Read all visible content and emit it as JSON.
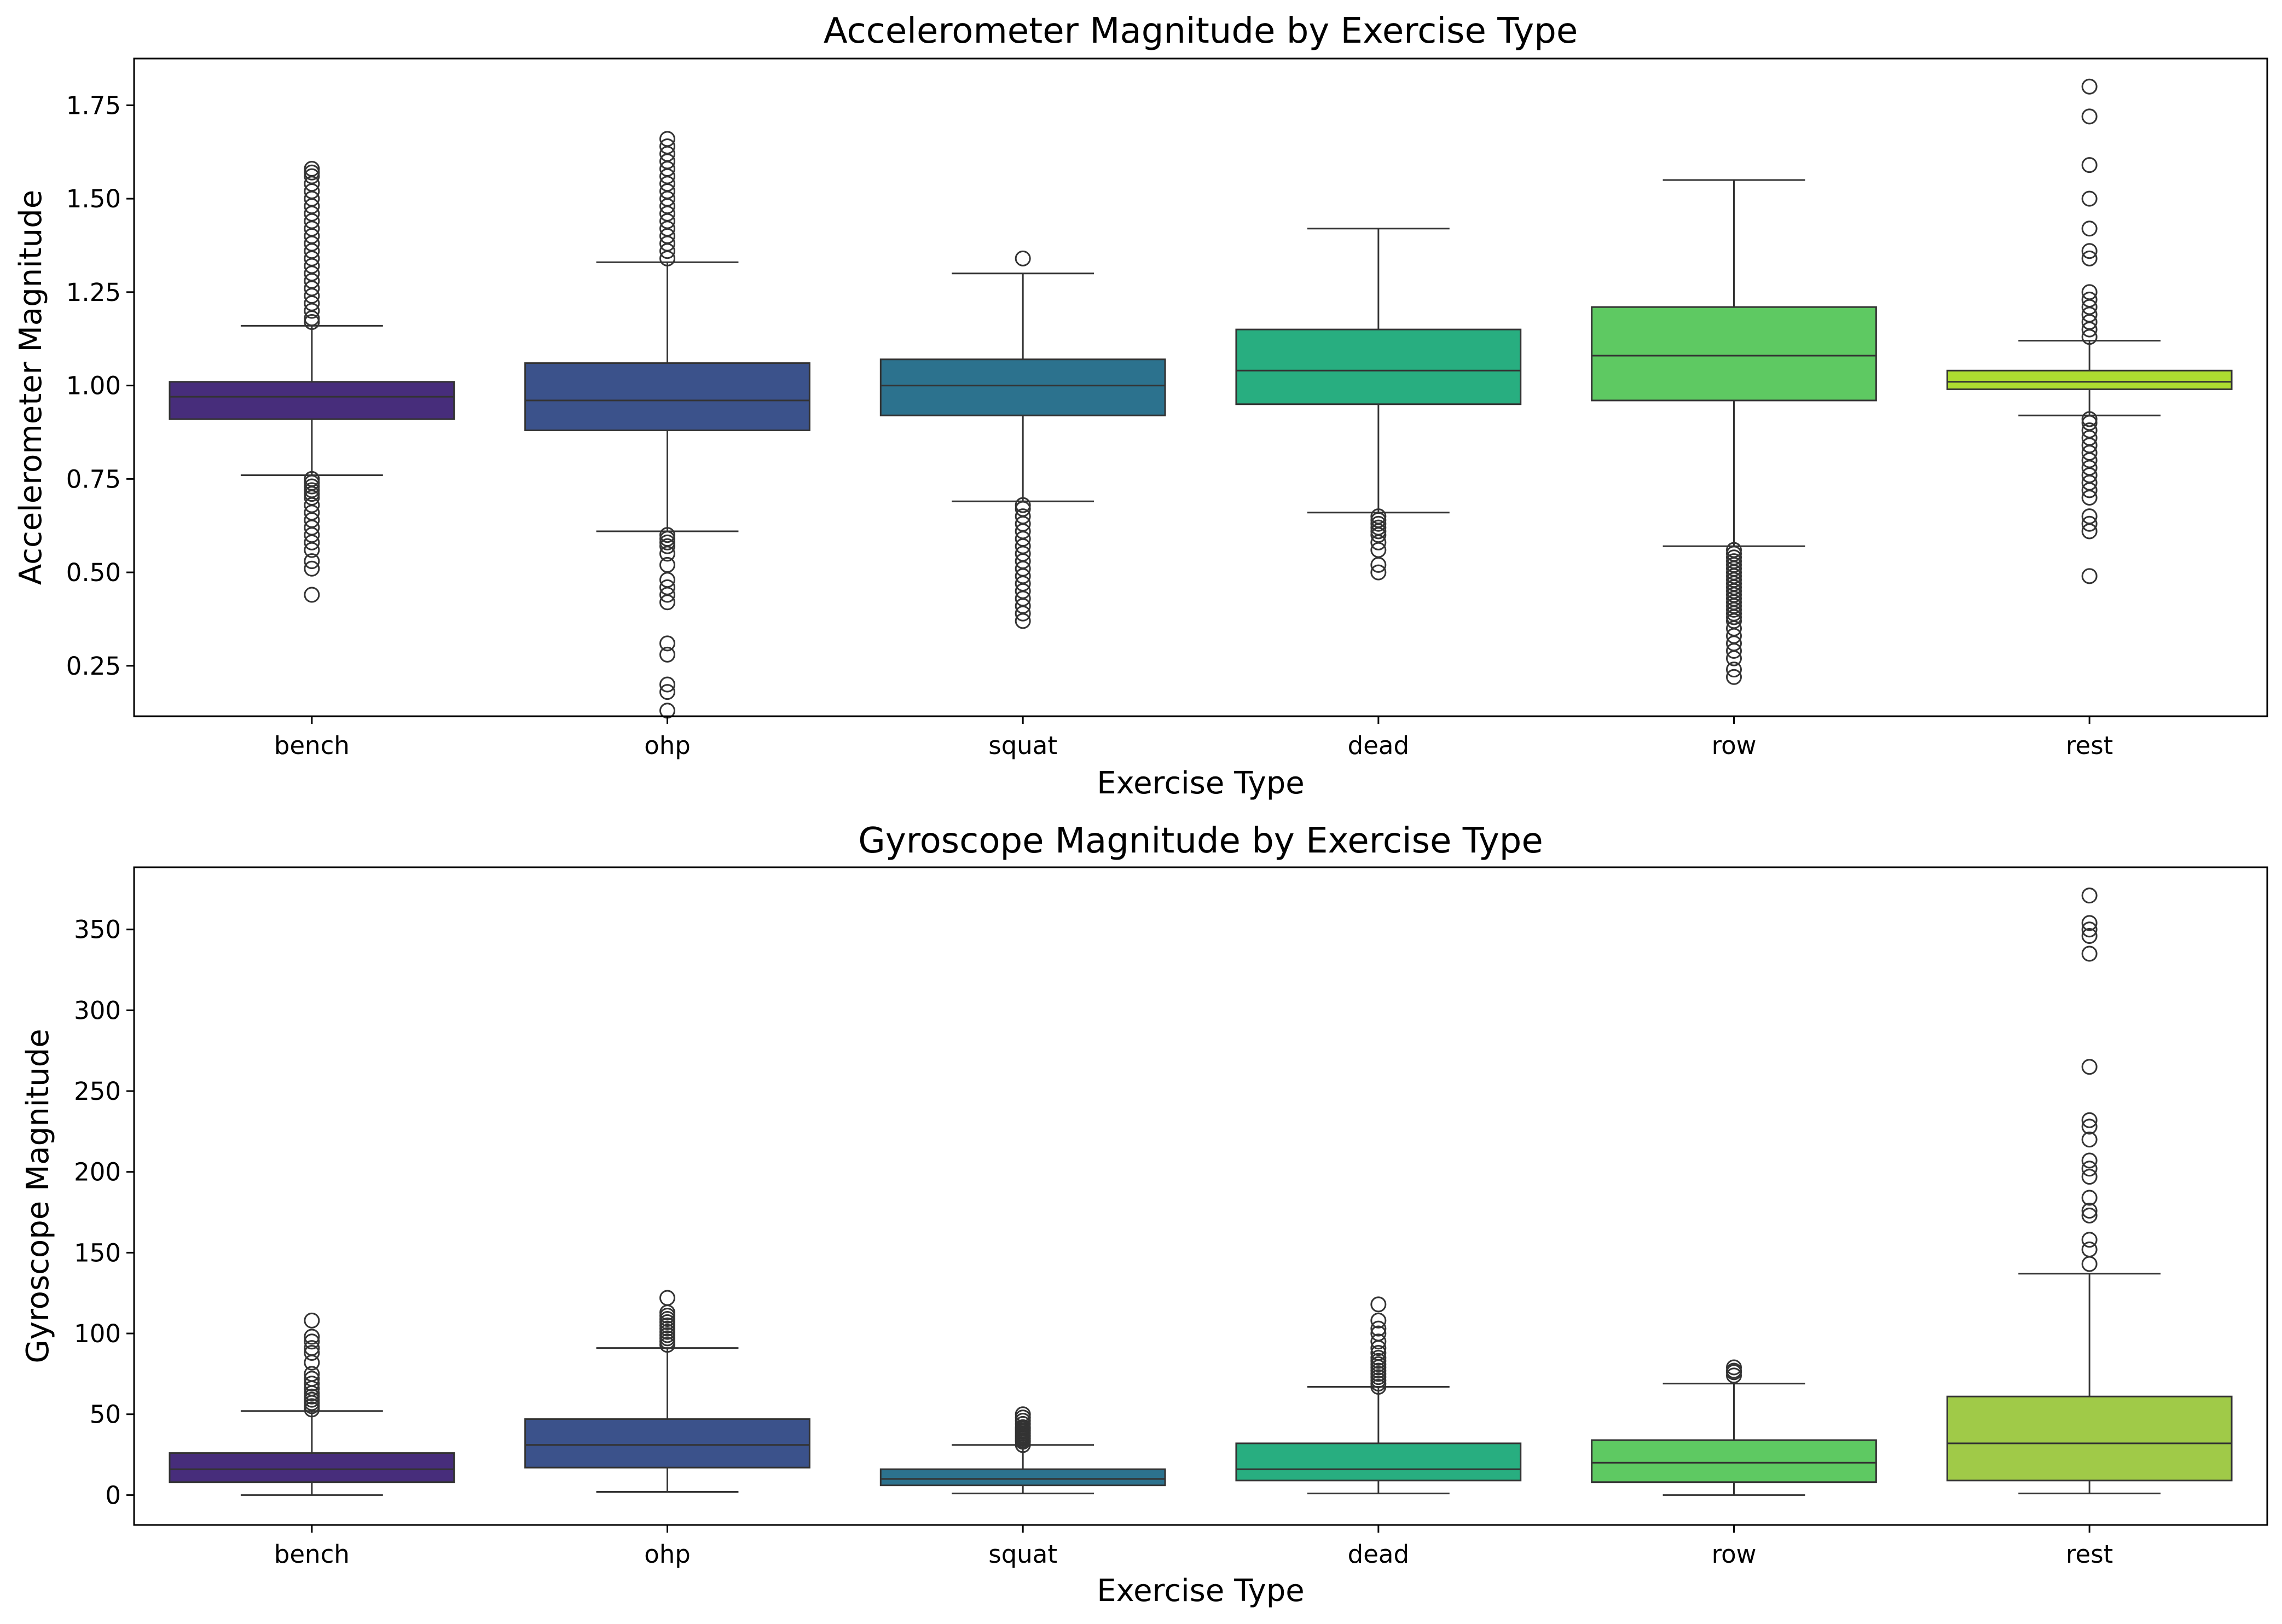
{
  "chart_data": [
    {
      "type": "box",
      "title": "Accelerometer Magnitude by Exercise Type",
      "xlabel": "Exercise Type",
      "ylabel": "Accelerometer Magnitude",
      "ylim": [
        0.115,
        1.875
      ],
      "yticks": [
        {
          "value": 0.25,
          "label": "0.25"
        },
        {
          "value": 0.5,
          "label": "0.50"
        },
        {
          "value": 0.75,
          "label": "0.75"
        },
        {
          "value": 1.0,
          "label": "1.00"
        },
        {
          "value": 1.25,
          "label": "1.25"
        },
        {
          "value": 1.5,
          "label": "1.50"
        },
        {
          "value": 1.75,
          "label": "1.75"
        }
      ],
      "categories": [
        "bench",
        "ohp",
        "squat",
        "dead",
        "row",
        "rest"
      ],
      "colors": [
        "#472d7b",
        "#3b528b",
        "#2c728e",
        "#28ae80",
        "#5ec962",
        "#addc30"
      ],
      "boxes": [
        {
          "q1": 0.91,
          "median": 0.97,
          "q3": 1.01,
          "whisker_low": 0.76,
          "whisker_high": 1.16,
          "outliers": [
            0.44,
            0.51,
            0.53,
            0.56,
            0.58,
            0.6,
            0.62,
            0.64,
            0.66,
            0.68,
            0.7,
            0.71,
            0.72,
            0.73,
            0.74,
            0.75,
            1.17,
            1.18,
            1.2,
            1.22,
            1.24,
            1.26,
            1.28,
            1.3,
            1.32,
            1.34,
            1.36,
            1.38,
            1.4,
            1.42,
            1.44,
            1.46,
            1.48,
            1.5,
            1.52,
            1.54,
            1.56,
            1.57,
            1.58
          ]
        },
        {
          "q1": 0.88,
          "median": 0.96,
          "q3": 1.06,
          "whisker_low": 0.61,
          "whisker_high": 1.33,
          "outliers": [
            0.13,
            0.18,
            0.2,
            0.28,
            0.31,
            0.42,
            0.44,
            0.46,
            0.48,
            0.52,
            0.55,
            0.57,
            0.58,
            0.59,
            0.6,
            1.34,
            1.36,
            1.38,
            1.4,
            1.42,
            1.44,
            1.46,
            1.48,
            1.5,
            1.52,
            1.54,
            1.56,
            1.58,
            1.6,
            1.62,
            1.64,
            1.66
          ]
        },
        {
          "q1": 0.92,
          "median": 1.0,
          "q3": 1.07,
          "whisker_low": 0.69,
          "whisker_high": 1.3,
          "outliers": [
            0.37,
            0.39,
            0.41,
            0.43,
            0.45,
            0.47,
            0.49,
            0.51,
            0.53,
            0.55,
            0.57,
            0.59,
            0.61,
            0.63,
            0.65,
            0.67,
            0.68,
            1.34
          ]
        },
        {
          "q1": 0.95,
          "median": 1.04,
          "q3": 1.15,
          "whisker_low": 0.66,
          "whisker_high": 1.42,
          "outliers": [
            0.5,
            0.52,
            0.56,
            0.58,
            0.6,
            0.61,
            0.62,
            0.63,
            0.64,
            0.65
          ]
        },
        {
          "q1": 0.96,
          "median": 1.08,
          "q3": 1.21,
          "whisker_low": 0.57,
          "whisker_high": 1.55,
          "outliers": [
            0.22,
            0.24,
            0.27,
            0.29,
            0.31,
            0.33,
            0.35,
            0.37,
            0.38,
            0.39,
            0.4,
            0.41,
            0.42,
            0.43,
            0.44,
            0.45,
            0.46,
            0.47,
            0.48,
            0.49,
            0.5,
            0.51,
            0.52,
            0.53,
            0.54,
            0.55,
            0.56
          ]
        },
        {
          "q1": 0.99,
          "median": 1.01,
          "q3": 1.04,
          "whisker_low": 0.92,
          "whisker_high": 1.12,
          "outliers": [
            0.49,
            0.61,
            0.63,
            0.65,
            0.7,
            0.72,
            0.74,
            0.76,
            0.78,
            0.8,
            0.82,
            0.84,
            0.86,
            0.88,
            0.9,
            0.91,
            1.13,
            1.15,
            1.17,
            1.19,
            1.21,
            1.23,
            1.25,
            1.34,
            1.36,
            1.42,
            1.5,
            1.59,
            1.72,
            1.8
          ]
        }
      ]
    },
    {
      "type": "box",
      "title": "Gyroscope Magnitude by Exercise Type",
      "xlabel": "Exercise Type",
      "ylabel": "Gyroscope Magnitude",
      "ylim": [
        -18.5,
        388.5
      ],
      "yticks": [
        {
          "value": 0,
          "label": "0"
        },
        {
          "value": 50,
          "label": "50"
        },
        {
          "value": 100,
          "label": "100"
        },
        {
          "value": 150,
          "label": "150"
        },
        {
          "value": 200,
          "label": "200"
        },
        {
          "value": 250,
          "label": "250"
        },
        {
          "value": 300,
          "label": "300"
        },
        {
          "value": 350,
          "label": "350"
        }
      ],
      "categories": [
        "bench",
        "ohp",
        "squat",
        "dead",
        "row",
        "rest"
      ],
      "colors": [
        "#472d7b",
        "#3b528b",
        "#2c728e",
        "#28ae80",
        "#5ec962",
        "#a0ca48"
      ],
      "boxes": [
        {
          "q1": 8,
          "median": 16,
          "q3": 26,
          "whisker_low": 0,
          "whisker_high": 52,
          "outliers": [
            53,
            55,
            57,
            59,
            61,
            63,
            66,
            69,
            72,
            75,
            82,
            88,
            91,
            95,
            98,
            108
          ]
        },
        {
          "q1": 17,
          "median": 31,
          "q3": 47,
          "whisker_low": 2,
          "whisker_high": 91,
          "outliers": [
            93,
            95,
            97,
            99,
            101,
            103,
            105,
            107,
            109,
            111,
            113,
            122
          ]
        },
        {
          "q1": 6,
          "median": 10,
          "q3": 16,
          "whisker_low": 1,
          "whisker_high": 31,
          "outliers": [
            31,
            33,
            34,
            35,
            36,
            37,
            38,
            39,
            40,
            41,
            42,
            44,
            46,
            48,
            50
          ]
        },
        {
          "q1": 9,
          "median": 16,
          "q3": 32,
          "whisker_low": 1,
          "whisker_high": 67,
          "outliers": [
            67,
            69,
            71,
            73,
            75,
            77,
            79,
            81,
            83,
            85,
            88,
            91,
            95,
            100,
            103,
            108,
            118
          ]
        },
        {
          "q1": 8,
          "median": 20,
          "q3": 34,
          "whisker_low": 0,
          "whisker_high": 69,
          "outliers": [
            74,
            76,
            77,
            79
          ]
        },
        {
          "q1": 9,
          "median": 32,
          "q3": 61,
          "whisker_low": 1,
          "whisker_high": 137,
          "outliers": [
            143,
            152,
            158,
            173,
            176,
            184,
            197,
            202,
            207,
            220,
            228,
            232,
            265,
            335,
            346,
            350,
            354,
            371
          ]
        }
      ]
    }
  ]
}
